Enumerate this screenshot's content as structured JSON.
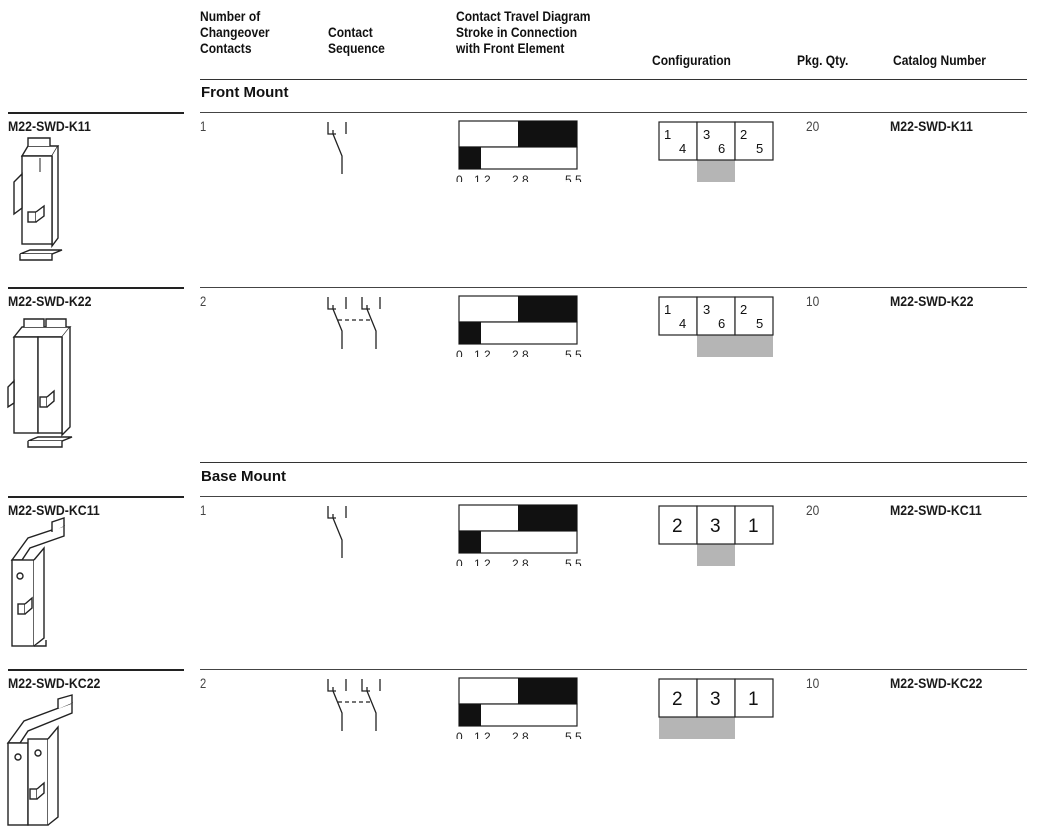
{
  "headers": {
    "changeover": [
      "Number of",
      "Changeover",
      "Contacts"
    ],
    "sequence": [
      "Contact",
      "Sequence"
    ],
    "travel": [
      "Contact Travel Diagram",
      "Stroke in Connection",
      "with Front Element"
    ],
    "configuration": "Configuration",
    "pkg_qty": "Pkg. Qty.",
    "catalog": "Catalog Number"
  },
  "sections": {
    "front": "Front Mount",
    "base": "Base Mount"
  },
  "travel_ticks": [
    "0",
    "1.2",
    "2.8",
    "5.5"
  ],
  "highlight_color": "#b5b5b5",
  "rows": [
    {
      "product": "M22-SWD-K11",
      "contacts": "1",
      "pkg_qty": "20",
      "catalog": "M22-SWD-K11",
      "config": {
        "style": "small",
        "cells": [
          [
            "1",
            "4"
          ],
          [
            "3",
            "6"
          ],
          [
            "2",
            "5"
          ]
        ],
        "highlight": "middle"
      }
    },
    {
      "product": "M22-SWD-K22",
      "contacts": "2",
      "pkg_qty": "10",
      "catalog": "M22-SWD-K22",
      "config": {
        "style": "small",
        "cells": [
          [
            "1",
            "4"
          ],
          [
            "3",
            "6"
          ],
          [
            "2",
            "5"
          ]
        ],
        "highlight": "middle-right"
      }
    },
    {
      "product": "M22-SWD-KC11",
      "contacts": "1",
      "pkg_qty": "20",
      "catalog": "M22-SWD-KC11",
      "config": {
        "style": "big",
        "cells": [
          "2",
          "3",
          "1"
        ],
        "highlight": "middle"
      }
    },
    {
      "product": "M22-SWD-KC22",
      "contacts": "2",
      "pkg_qty": "10",
      "catalog": "M22-SWD-KC22",
      "config": {
        "style": "big",
        "cells": [
          "2",
          "3",
          "1"
        ],
        "highlight": "left-middle"
      }
    }
  ]
}
